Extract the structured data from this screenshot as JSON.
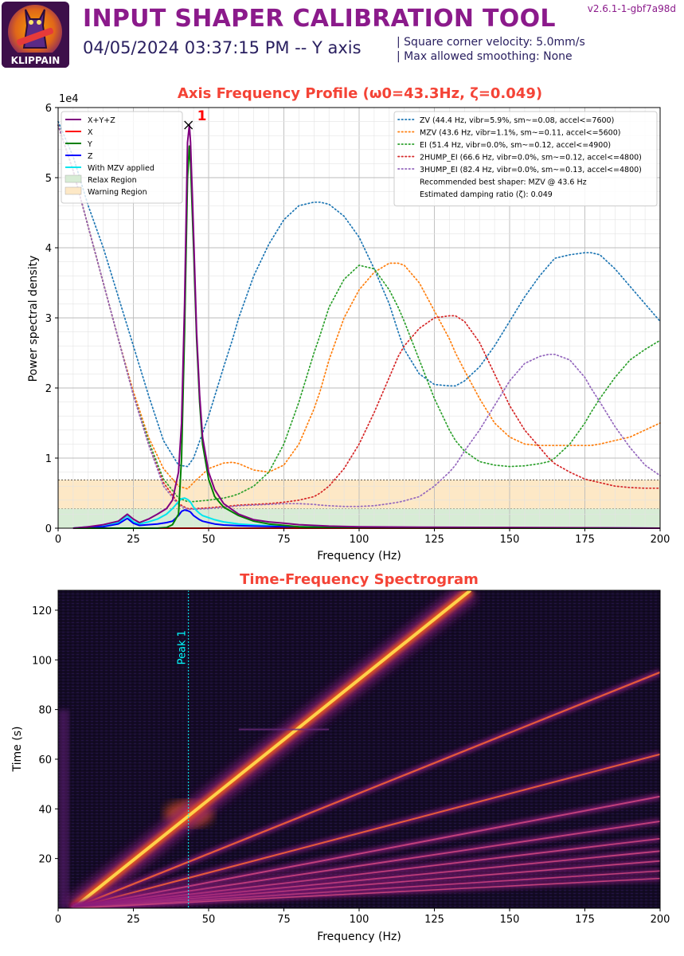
{
  "header": {
    "title": "INPUT SHAPER CALIBRATION TOOL",
    "datetime_axis": "04/05/2024 03:37:15 PM -- Y axis",
    "version": "v2.6.1-1-gbf7a98d",
    "param_lines": [
      "Square corner velocity: 5.0mm/s",
      "Max allowed smoothing: None"
    ],
    "logo_text": "KLIPPAIN"
  },
  "chart_data": [
    {
      "type": "line",
      "title": "Axis Frequency Profile (ω0=43.3Hz, ζ=0.049)",
      "xlabel": "Frequency (Hz)",
      "ylabel": "Power spectral density",
      "y_exponent_label": "1e4",
      "xlim": [
        0,
        200
      ],
      "ylim": [
        0,
        60000
      ],
      "x_ticks": [
        "0",
        "25",
        "50",
        "75",
        "100",
        "125",
        "150",
        "175",
        "200"
      ],
      "y_ticks": [
        "0",
        "1",
        "2",
        "3",
        "4",
        "5",
        "6"
      ],
      "grid": true,
      "legend_left_position": "upper left",
      "legend_right_position": "upper right",
      "psd_x": [
        5,
        10,
        15,
        20,
        23,
        25,
        27,
        30,
        33,
        36,
        38,
        40,
        41,
        42,
        43,
        43.6,
        44,
        45,
        46,
        47,
        48,
        50,
        52,
        55,
        60,
        65,
        70,
        75,
        80,
        90,
        100,
        120,
        150,
        200
      ],
      "series": [
        {
          "name": "X+Y+Z",
          "color": "#800080",
          "values": [
            0,
            200,
            500,
            1000,
            2000,
            1300,
            800,
            1300,
            2000,
            2800,
            4000,
            8000,
            15000,
            32000,
            55000,
            57500,
            55000,
            42000,
            28000,
            19000,
            13000,
            8000,
            5500,
            3500,
            2000,
            1200,
            900,
            700,
            500,
            300,
            200,
            150,
            100,
            0
          ]
        },
        {
          "name": "X",
          "color": "#ff0000",
          "values": [
            0,
            0,
            0,
            0,
            0,
            0,
            0,
            0,
            0,
            0,
            0,
            0,
            0,
            0,
            0,
            0,
            0,
            0,
            0,
            0,
            0,
            0,
            0,
            0,
            0,
            0,
            0,
            0,
            0,
            0,
            0,
            0,
            0,
            0
          ]
        },
        {
          "name": "Y",
          "color": "#008000",
          "values": [
            0,
            0,
            0,
            0,
            0,
            0,
            0,
            0,
            0,
            100,
            500,
            2000,
            10000,
            28000,
            50000,
            54500,
            52000,
            40000,
            27000,
            18000,
            12000,
            7000,
            4500,
            3000,
            1800,
            1000,
            600,
            400,
            200,
            100,
            50,
            20,
            10,
            0
          ]
        },
        {
          "name": "Z",
          "color": "#0000ff",
          "values": [
            0,
            100,
            200,
            600,
            1400,
            700,
            400,
            500,
            600,
            800,
            1000,
            1800,
            2400,
            2600,
            2500,
            2400,
            2300,
            1800,
            1500,
            1200,
            1000,
            800,
            600,
            450,
            350,
            300,
            250,
            200,
            150,
            100,
            80,
            50,
            30,
            0
          ]
        },
        {
          "name": "With MZV applied",
          "color": "#00e5ee",
          "values": [
            0,
            200,
            400,
            800,
            1800,
            900,
            600,
            900,
            1300,
            2000,
            2800,
            3800,
            4200,
            4300,
            4100,
            3900,
            3700,
            3000,
            2500,
            2100,
            1800,
            1500,
            1200,
            900,
            600,
            450,
            350,
            280,
            200,
            150,
            100,
            60,
            30,
            0
          ]
        }
      ],
      "regions": [
        {
          "name": "Relax Region",
          "color": "#d7ecd5",
          "from": 0,
          "to": 2800
        },
        {
          "name": "Warning Region",
          "color": "#fde8c6",
          "from": 2800,
          "to": 6900
        }
      ],
      "peak": {
        "label": "1",
        "x": 43.3,
        "y": 57500
      },
      "shaper_legend": [
        {
          "name": "ZV (44.4 Hz, vibr=5.9%, sm~=0.08, accel<=7600)",
          "color": "#1f77b4"
        },
        {
          "name": "MZV (43.6 Hz, vibr=1.1%, sm~=0.11, accel<=5600)",
          "color": "#ff7f0e"
        },
        {
          "name": "EI (51.4 Hz, vibr=0.0%, sm~=0.12, accel<=4900)",
          "color": "#2ca02c"
        },
        {
          "name": "2HUMP_EI (66.6 Hz, vibr=0.0%, sm~=0.12, accel<=4800)",
          "color": "#d62728"
        },
        {
          "name": "3HUMP_EI (82.4 Hz, vibr=0.0%, sm~=0.13, accel<=4800)",
          "color": "#9467bd"
        },
        {
          "name": "Recommended best shaper: MZV @ 43.6 Hz",
          "color": ""
        },
        {
          "name": "Estimated damping ratio (ζ): 0.049",
          "color": ""
        }
      ],
      "shaper_x": [
        0,
        5,
        10,
        15,
        20,
        25,
        30,
        35,
        40,
        43,
        45,
        50,
        55,
        58,
        60,
        65,
        70,
        75,
        80,
        85,
        87,
        90,
        95,
        100,
        105,
        110,
        113,
        115,
        120,
        125,
        130,
        132,
        135,
        140,
        145,
        150,
        155,
        160,
        163,
        165,
        170,
        175,
        177,
        180,
        185,
        190,
        195,
        200
      ],
      "shaper_curves": [
        {
          "name": "ZV",
          "color": "#1f77b4",
          "values": [
            58000,
            53000,
            46000,
            40000,
            33000,
            26000,
            19000,
            12500,
            9000,
            8800,
            10000,
            16000,
            23000,
            27000,
            30000,
            36000,
            40500,
            44000,
            46000,
            46500,
            46500,
            46200,
            44500,
            41500,
            37000,
            32000,
            28000,
            25500,
            22000,
            20500,
            20300,
            20300,
            21000,
            23000,
            26000,
            29500,
            33000,
            36000,
            37500,
            38500,
            39000,
            39300,
            39300,
            39000,
            37000,
            34500,
            32000,
            29500
          ]
        },
        {
          "name": "MZV",
          "color": "#ff7f0e",
          "values": [
            57500,
            51000,
            43000,
            35000,
            27000,
            19500,
            13000,
            8500,
            6000,
            5600,
            6500,
            8500,
            9300,
            9400,
            9200,
            8300,
            8000,
            9000,
            12000,
            17000,
            19500,
            24000,
            30000,
            34000,
            36500,
            37800,
            37800,
            37500,
            35000,
            31000,
            27000,
            25000,
            22500,
            18500,
            15000,
            13000,
            12000,
            11800,
            11800,
            11800,
            11800,
            11800,
            11800,
            12000,
            12500,
            13000,
            14000,
            15000
          ]
        },
        {
          "name": "EI",
          "color": "#2ca02c",
          "values": [
            57500,
            51000,
            43000,
            35000,
            27000,
            19000,
            12500,
            7000,
            4300,
            3800,
            3800,
            4000,
            4300,
            4600,
            4900,
            6000,
            8000,
            12000,
            18000,
            25000,
            27500,
            31500,
            35500,
            37500,
            37000,
            34000,
            31500,
            29500,
            24000,
            18500,
            14000,
            12500,
            11000,
            9500,
            9000,
            8800,
            8900,
            9200,
            9500,
            10000,
            12000,
            15000,
            16500,
            18500,
            21500,
            24000,
            25500,
            26800
          ]
        },
        {
          "name": "2HUMP_EI",
          "color": "#d62728",
          "values": [
            57500,
            51000,
            43000,
            35000,
            27000,
            19000,
            12000,
            6500,
            3500,
            2800,
            2800,
            2900,
            3100,
            3200,
            3300,
            3400,
            3500,
            3700,
            4000,
            4500,
            5000,
            6000,
            8500,
            12000,
            16500,
            21500,
            24500,
            26000,
            28500,
            30000,
            30300,
            30300,
            29500,
            26500,
            22000,
            17500,
            14000,
            11500,
            10000,
            9200,
            8000,
            7000,
            6800,
            6500,
            6000,
            5800,
            5700,
            5700
          ]
        },
        {
          "name": "3HUMP_EI",
          "color": "#9467bd",
          "values": [
            57500,
            51000,
            43000,
            35000,
            27000,
            19000,
            12000,
            6000,
            3300,
            2700,
            2700,
            2800,
            3000,
            3100,
            3200,
            3300,
            3400,
            3500,
            3500,
            3400,
            3300,
            3200,
            3100,
            3100,
            3200,
            3500,
            3700,
            3900,
            4500,
            6000,
            8000,
            9000,
            11000,
            14000,
            17500,
            21000,
            23500,
            24500,
            24800,
            24800,
            24000,
            21500,
            20000,
            18000,
            14500,
            11500,
            9000,
            7500
          ]
        }
      ]
    },
    {
      "type": "heatmap",
      "title": "Time-Frequency Spectrogram",
      "xlabel": "Frequency (Hz)",
      "ylabel": "Time (s)",
      "xlim": [
        0,
        200
      ],
      "ylim": [
        0,
        128
      ],
      "x_ticks": [
        "0",
        "25",
        "50",
        "75",
        "100",
        "125",
        "150",
        "175",
        "200"
      ],
      "y_ticks": [
        "20",
        "40",
        "60",
        "80",
        "100",
        "120"
      ],
      "peak_line": {
        "label": "Peak 1",
        "x": 43.3
      },
      "ridges": [
        {
          "x0": 5,
          "y0": 0,
          "x1": 137,
          "y1": 128,
          "intensity": 1.0
        },
        {
          "x0": 5,
          "y0": 0,
          "x1": 200,
          "y1": 95,
          "intensity": 0.55
        },
        {
          "x0": 5,
          "y0": 0,
          "x1": 200,
          "y1": 62,
          "intensity": 0.45
        },
        {
          "x0": 5,
          "y0": 0,
          "x1": 200,
          "y1": 45,
          "intensity": 0.4
        },
        {
          "x0": 5,
          "y0": 0,
          "x1": 200,
          "y1": 35,
          "intensity": 0.35
        },
        {
          "x0": 5,
          "y0": 0,
          "x1": 200,
          "y1": 28,
          "intensity": 0.3
        },
        {
          "x0": 5,
          "y0": 0,
          "x1": 200,
          "y1": 23,
          "intensity": 0.28
        },
        {
          "x0": 5,
          "y0": 0,
          "x1": 200,
          "y1": 19,
          "intensity": 0.25
        },
        {
          "x0": 5,
          "y0": 0,
          "x1": 200,
          "y1": 15,
          "intensity": 0.2
        },
        {
          "x0": 5,
          "y0": 0,
          "x1": 200,
          "y1": 12,
          "intensity": 0.18
        }
      ]
    }
  ]
}
